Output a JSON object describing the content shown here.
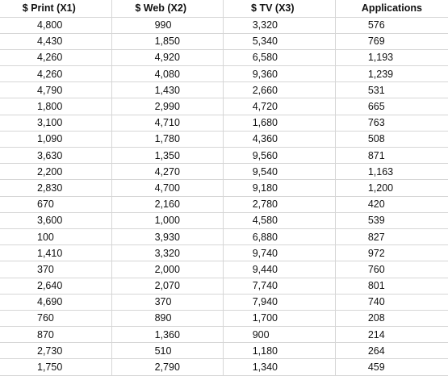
{
  "headers": [
    "$ Print (X1)",
    "$ Web (X2)",
    "$ TV (X3)",
    "Applications"
  ],
  "rows": [
    [
      "4,800",
      "990",
      "3,320",
      "576"
    ],
    [
      "4,430",
      "1,850",
      "5,340",
      "769"
    ],
    [
      "4,260",
      "4,920",
      "6,580",
      "1,193"
    ],
    [
      "4,260",
      "4,080",
      "9,360",
      "1,239"
    ],
    [
      "4,790",
      "1,430",
      "2,660",
      "531"
    ],
    [
      "1,800",
      "2,990",
      "4,720",
      "665"
    ],
    [
      "3,100",
      "4,710",
      "1,680",
      "763"
    ],
    [
      "1,090",
      "1,780",
      "4,360",
      "508"
    ],
    [
      "3,630",
      "1,350",
      "9,560",
      "871"
    ],
    [
      "2,200",
      "4,270",
      "9,540",
      "1,163"
    ],
    [
      "2,830",
      "4,700",
      "9,180",
      "1,200"
    ],
    [
      "670",
      "2,160",
      "2,780",
      "420"
    ],
    [
      "3,600",
      "1,000",
      "4,580",
      "539"
    ],
    [
      "100",
      "3,930",
      "6,880",
      "827"
    ],
    [
      "1,410",
      "3,320",
      "9,740",
      "972"
    ],
    [
      "370",
      "2,000",
      "9,440",
      "760"
    ],
    [
      "2,640",
      "2,070",
      "7,740",
      "801"
    ],
    [
      "4,690",
      "370",
      "7,940",
      "740"
    ],
    [
      "760",
      "890",
      "1,700",
      "208"
    ],
    [
      "870",
      "1,360",
      "900",
      "214"
    ],
    [
      "2,730",
      "510",
      "1,180",
      "264"
    ],
    [
      "1,750",
      "2,790",
      "1,340",
      "459"
    ]
  ]
}
